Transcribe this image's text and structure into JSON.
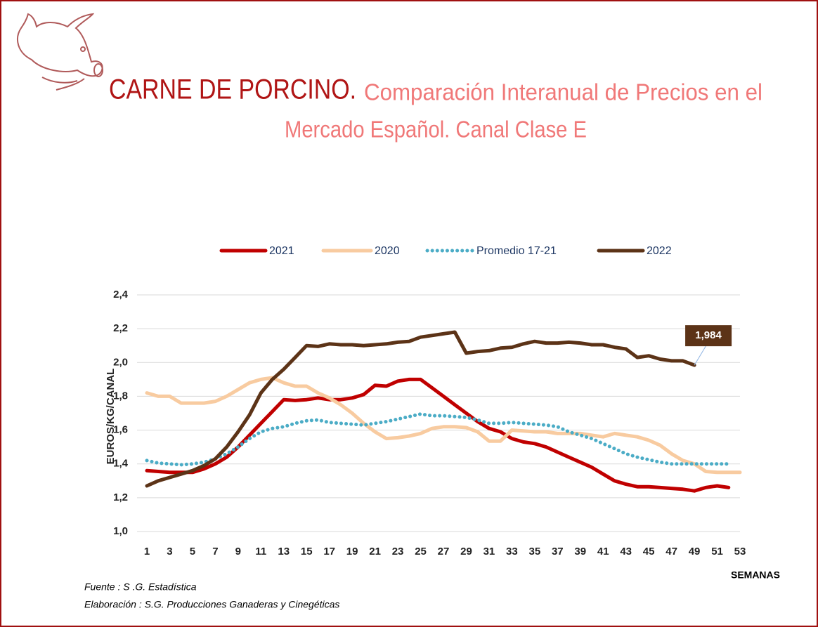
{
  "header": {
    "title": "CARNE DE PORCINO.",
    "subtitle_line1": "Comparación Interanual de Precios en el",
    "subtitle_line2": "Mercado Español. Canal Clase E"
  },
  "chart_data": {
    "type": "line",
    "y_label": "EUROS/KG/CANAL",
    "x_label": "SEMANAS",
    "x": [
      1,
      2,
      3,
      4,
      5,
      6,
      7,
      8,
      9,
      10,
      11,
      12,
      13,
      14,
      15,
      16,
      17,
      18,
      19,
      20,
      21,
      22,
      23,
      24,
      25,
      26,
      27,
      28,
      29,
      30,
      31,
      32,
      33,
      34,
      35,
      36,
      37,
      38,
      39,
      40,
      41,
      42,
      43,
      44,
      45,
      46,
      47,
      48,
      49,
      50,
      51,
      52,
      53
    ],
    "xlim": [
      1,
      53
    ],
    "xticks": [
      1,
      3,
      5,
      7,
      9,
      11,
      13,
      15,
      17,
      19,
      21,
      23,
      25,
      27,
      29,
      31,
      33,
      35,
      37,
      39,
      41,
      43,
      45,
      47,
      49,
      51,
      53
    ],
    "ylim": [
      1.0,
      2.4
    ],
    "yticks": [
      {
        "value": 1.0,
        "label": "1,0"
      },
      {
        "value": 1.2,
        "label": "1,2"
      },
      {
        "value": 1.4,
        "label": "1,4"
      },
      {
        "value": 1.6,
        "label": "1,6"
      },
      {
        "value": 1.8,
        "label": "1,8"
      },
      {
        "value": 2.0,
        "label": "2,0"
      },
      {
        "value": 2.2,
        "label": "2,2"
      },
      {
        "value": 2.4,
        "label": "2,4"
      }
    ],
    "grid": true,
    "legend": "top",
    "series": [
      {
        "name": "2021",
        "color": "#c00000",
        "style": "solid",
        "values": [
          1.36,
          1.355,
          1.35,
          1.35,
          1.35,
          1.37,
          1.4,
          1.44,
          1.5,
          1.57,
          1.64,
          1.71,
          1.78,
          1.775,
          1.78,
          1.79,
          1.78,
          1.78,
          1.79,
          1.81,
          1.865,
          1.86,
          1.89,
          1.9,
          1.9,
          1.85,
          1.8,
          1.75,
          1.7,
          1.65,
          1.61,
          1.59,
          1.55,
          1.53,
          1.52,
          1.5,
          1.47,
          1.44,
          1.41,
          1.38,
          1.34,
          1.3,
          1.28,
          1.265,
          1.265,
          1.26,
          1.255,
          1.25,
          1.24,
          1.26,
          1.27,
          1.26,
          null
        ]
      },
      {
        "name": "2020",
        "color": "#f8cba0",
        "style": "solid",
        "values": [
          1.82,
          1.8,
          1.8,
          1.76,
          1.76,
          1.76,
          1.77,
          1.8,
          1.84,
          1.88,
          1.9,
          1.91,
          1.88,
          1.86,
          1.86,
          1.82,
          1.79,
          1.75,
          1.7,
          1.64,
          1.59,
          1.55,
          1.555,
          1.565,
          1.58,
          1.61,
          1.62,
          1.62,
          1.615,
          1.59,
          1.535,
          1.535,
          1.6,
          1.595,
          1.59,
          1.59,
          1.58,
          1.58,
          1.58,
          1.57,
          1.56,
          1.58,
          1.57,
          1.56,
          1.54,
          1.51,
          1.46,
          1.42,
          1.4,
          1.355,
          1.35,
          1.35,
          1.35
        ]
      },
      {
        "name": "Promedio 17-21",
        "color": "#4bacc6",
        "style": "dotted",
        "values": [
          1.42,
          1.405,
          1.4,
          1.395,
          1.4,
          1.41,
          1.43,
          1.46,
          1.5,
          1.55,
          1.59,
          1.61,
          1.62,
          1.64,
          1.655,
          1.66,
          1.645,
          1.64,
          1.635,
          1.63,
          1.64,
          1.65,
          1.665,
          1.68,
          1.695,
          1.685,
          1.685,
          1.68,
          1.675,
          1.66,
          1.64,
          1.64,
          1.645,
          1.64,
          1.635,
          1.63,
          1.62,
          1.59,
          1.57,
          1.55,
          1.52,
          1.49,
          1.46,
          1.44,
          1.425,
          1.41,
          1.4,
          1.4,
          1.4,
          1.4,
          1.4,
          1.4,
          null
        ]
      },
      {
        "name": "2022",
        "color": "#5c3317",
        "style": "solid",
        "values": [
          1.27,
          1.3,
          1.32,
          1.34,
          1.36,
          1.39,
          1.43,
          1.5,
          1.59,
          1.69,
          1.82,
          1.9,
          1.96,
          2.03,
          2.1,
          2.095,
          2.11,
          2.105,
          2.105,
          2.1,
          2.105,
          2.11,
          2.12,
          2.125,
          2.15,
          2.16,
          2.17,
          2.18,
          2.055,
          2.065,
          2.07,
          2.085,
          2.09,
          2.11,
          2.125,
          2.115,
          2.115,
          2.12,
          2.115,
          2.105,
          2.105,
          2.09,
          2.08,
          2.03,
          2.04,
          2.02,
          2.01,
          2.01,
          1.984,
          null,
          null,
          null,
          null
        ],
        "value_labels": [
          null,
          null,
          null,
          null,
          null,
          null,
          null,
          null,
          null,
          null,
          null,
          null,
          null,
          null,
          null,
          null,
          null,
          null,
          null,
          null,
          null,
          null,
          null,
          null,
          null,
          null,
          null,
          null,
          null,
          null,
          null,
          null,
          null,
          null,
          null,
          null,
          null,
          null,
          null,
          null,
          null,
          null,
          null,
          null,
          null,
          null,
          null,
          null,
          "1,984",
          null,
          null,
          null,
          null
        ]
      }
    ]
  },
  "footer": {
    "source": "Fuente : S .G. Estadística",
    "author": "Elaboración : S.G. Producciones Ganaderas y Cinegéticas"
  }
}
